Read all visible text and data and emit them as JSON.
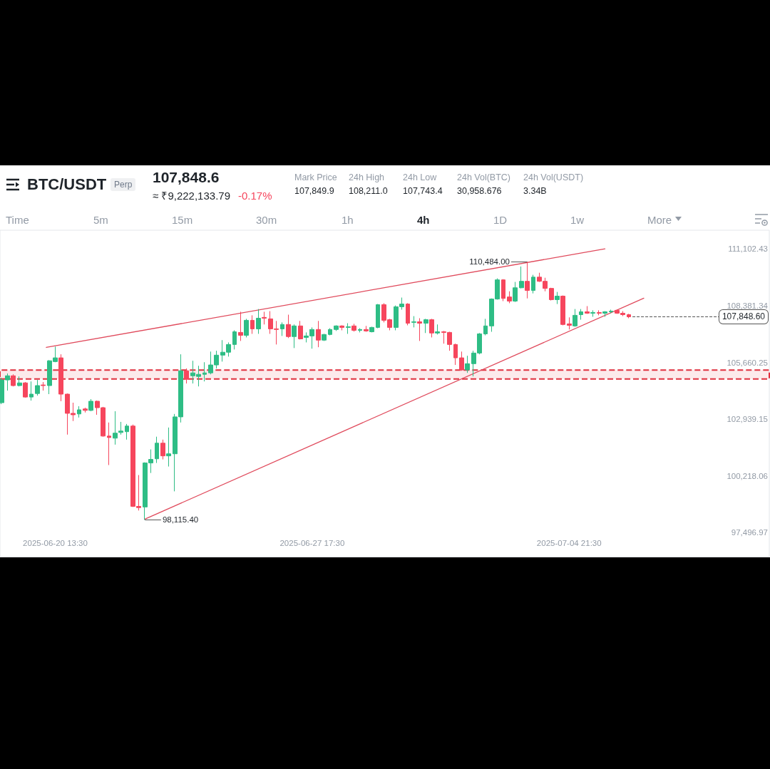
{
  "chart_data": {
    "type": "candlestick",
    "title": "BTC/USDT",
    "annotations": [
      "Perp",
      "107,848.6",
      "≈ ₹9,222,133.79",
      "-0.17%",
      "Mark Price",
      "107,849.9",
      "24h High",
      "108,211.0",
      "24h Low",
      "107,743.4",
      "24h Vol(BTC)",
      "30,958.676",
      "24h Vol(USDT)",
      "3.34B",
      "Time",
      "5m",
      "15m",
      "30m",
      "1h",
      "4h",
      "1D",
      "1w",
      "More",
      {
        "text": "110,484.00",
        "x": "2025-07-03T17:30",
        "y": 110484
      },
      {
        "text": "98,115.40",
        "x": "2025-06-23T01:30",
        "y": 98115.4
      }
    ],
    "x": [
      "2025-06-19T01:30",
      "2025-06-19T05:30",
      "2025-06-19T09:30",
      "2025-06-19T13:30",
      "2025-06-19T17:30",
      "2025-06-19T21:30",
      "2025-06-20T01:30",
      "2025-06-20T05:30",
      "2025-06-20T09:30",
      "2025-06-20T13:30",
      "2025-06-20T17:30",
      "2025-06-20T21:30",
      "2025-06-21T01:30",
      "2025-06-21T05:30",
      "2025-06-21T09:30",
      "2025-06-21T13:30",
      "2025-06-21T17:30",
      "2025-06-21T21:30",
      "2025-06-22T01:30",
      "2025-06-22T05:30",
      "2025-06-22T09:30",
      "2025-06-22T13:30",
      "2025-06-22T17:30",
      "2025-06-22T21:30",
      "2025-06-23T01:30",
      "2025-06-23T05:30",
      "2025-06-23T09:30",
      "2025-06-23T13:30",
      "2025-06-23T17:30",
      "2025-06-23T21:30",
      "2025-06-24T01:30",
      "2025-06-24T05:30",
      "2025-06-24T09:30",
      "2025-06-24T13:30",
      "2025-06-24T17:30",
      "2025-06-24T21:30",
      "2025-06-25T01:30",
      "2025-06-25T05:30",
      "2025-06-25T09:30",
      "2025-06-25T13:30",
      "2025-06-25T17:30",
      "2025-06-25T21:30",
      "2025-06-26T01:30",
      "2025-06-26T05:30",
      "2025-06-26T09:30",
      "2025-06-26T13:30",
      "2025-06-26T17:30",
      "2025-06-26T21:30",
      "2025-06-27T01:30",
      "2025-06-27T05:30",
      "2025-06-27T09:30",
      "2025-06-27T13:30",
      "2025-06-27T17:30",
      "2025-06-27T21:30",
      "2025-06-28T01:30",
      "2025-06-28T05:30",
      "2025-06-28T09:30",
      "2025-06-28T13:30",
      "2025-06-28T17:30",
      "2025-06-28T21:30",
      "2025-06-29T01:30",
      "2025-06-29T05:30",
      "2025-06-29T09:30",
      "2025-06-29T13:30",
      "2025-06-29T17:30",
      "2025-06-29T21:30",
      "2025-06-30T01:30",
      "2025-06-30T05:30",
      "2025-06-30T09:30",
      "2025-06-30T13:30",
      "2025-06-30T17:30",
      "2025-06-30T21:30",
      "2025-07-01T01:30",
      "2025-07-01T05:30",
      "2025-07-01T09:30",
      "2025-07-01T13:30",
      "2025-07-01T17:30",
      "2025-07-01T21:30",
      "2025-07-02T01:30",
      "2025-07-02T05:30",
      "2025-07-02T09:30",
      "2025-07-02T13:30",
      "2025-07-02T17:30",
      "2025-07-02T21:30",
      "2025-07-03T01:30",
      "2025-07-03T05:30",
      "2025-07-03T09:30",
      "2025-07-03T13:30",
      "2025-07-03T17:30",
      "2025-07-03T21:30",
      "2025-07-04T01:30",
      "2025-07-04T05:30",
      "2025-07-04T09:30",
      "2025-07-04T13:30",
      "2025-07-04T17:30",
      "2025-07-04T21:30",
      "2025-07-05T01:30",
      "2025-07-05T05:30",
      "2025-07-05T09:30",
      "2025-07-05T13:30",
      "2025-07-05T17:30",
      "2025-07-05T21:30",
      "2025-07-06T01:30",
      "2025-07-06T05:30",
      "2025-07-06T09:30",
      "2025-07-06T13:30"
    ],
    "ohlc": [
      [
        103730,
        104920,
        103660,
        104820
      ],
      [
        104820,
        105130,
        104310,
        105020
      ],
      [
        105020,
        105090,
        104510,
        104550
      ],
      [
        104550,
        104990,
        104510,
        104680
      ],
      [
        104680,
        104720,
        103970,
        104000
      ],
      [
        104000,
        104750,
        103830,
        104140
      ],
      [
        104170,
        104820,
        104070,
        104550
      ],
      [
        104580,
        104720,
        104310,
        104550
      ],
      [
        104550,
        105770,
        104140,
        105740
      ],
      [
        105700,
        106420,
        105670,
        105880
      ],
      [
        105880,
        106050,
        103800,
        104140
      ],
      [
        104140,
        104170,
        102200,
        103220
      ],
      [
        103220,
        103730,
        102850,
        103150
      ],
      [
        103190,
        103560,
        103020,
        103390
      ],
      [
        103430,
        103490,
        103260,
        103360
      ],
      [
        103360,
        103900,
        103320,
        103800
      ],
      [
        103800,
        103830,
        103150,
        103490
      ],
      [
        103490,
        103530,
        102100,
        102130
      ],
      [
        102130,
        102780,
        100740,
        102060
      ],
      [
        102030,
        103320,
        101720,
        102270
      ],
      [
        102300,
        102810,
        102200,
        102370
      ],
      [
        102340,
        102710,
        101960,
        102610
      ],
      [
        102610,
        102680,
        98730,
        98760
      ],
      [
        98760,
        100260,
        98560,
        98700
      ],
      [
        98730,
        100870,
        98115.4,
        100840
      ],
      [
        100840,
        101490,
        100360,
        101010
      ],
      [
        101040,
        102100,
        100840,
        101790
      ],
      [
        101790,
        101960,
        101010,
        101180
      ],
      [
        101180,
        102540,
        100670,
        101280
      ],
      [
        101280,
        103190,
        99480,
        103050
      ],
      [
        103050,
        106050,
        102780,
        105260
      ],
      [
        105260,
        105370,
        104650,
        104850
      ],
      [
        105020,
        105740,
        104650,
        105160
      ],
      [
        104990,
        105500,
        104510,
        105090
      ],
      [
        105090,
        105670,
        104750,
        105160
      ],
      [
        105160,
        106180,
        105090,
        105540
      ],
      [
        105540,
        106220,
        105370,
        106010
      ],
      [
        106010,
        106730,
        105700,
        106150
      ],
      [
        106150,
        106620,
        105940,
        106520
      ],
      [
        106520,
        107200,
        106280,
        107130
      ],
      [
        107100,
        108090,
        106690,
        106960
      ],
      [
        106960,
        107750,
        106860,
        107680
      ],
      [
        107680,
        107920,
        107030,
        107270
      ],
      [
        107270,
        108220,
        107030,
        107780
      ],
      [
        107820,
        108090,
        107480,
        107780
      ],
      [
        107750,
        108120,
        107030,
        107270
      ],
      [
        107270,
        107650,
        106520,
        107240
      ],
      [
        107270,
        107580,
        106930,
        107480
      ],
      [
        107480,
        107950,
        106830,
        106900
      ],
      [
        106900,
        107480,
        106350,
        107410
      ],
      [
        107410,
        107650,
        106760,
        106790
      ],
      [
        106860,
        107100,
        106620,
        106930
      ],
      [
        106930,
        107340,
        106320,
        107240
      ],
      [
        107240,
        107650,
        106390,
        106730
      ],
      [
        106730,
        107030,
        106690,
        107000
      ],
      [
        107000,
        107300,
        106960,
        107240
      ],
      [
        107240,
        107440,
        107170,
        107410
      ],
      [
        107410,
        107440,
        107200,
        107340
      ],
      [
        107340,
        107540,
        107030,
        107370
      ],
      [
        107410,
        107510,
        107140,
        107200
      ],
      [
        107200,
        107300,
        107100,
        107240
      ],
      [
        107240,
        107410,
        107130,
        107170
      ],
      [
        107130,
        107370,
        107100,
        107340
      ],
      [
        107340,
        108460,
        107300,
        108430
      ],
      [
        108430,
        108500,
        107580,
        107680
      ],
      [
        107710,
        107750,
        107200,
        107340
      ],
      [
        107340,
        108390,
        107200,
        108330
      ],
      [
        108330,
        108770,
        108190,
        108460
      ],
      [
        108460,
        108500,
        107440,
        107540
      ],
      [
        107580,
        107880,
        107340,
        107610
      ],
      [
        107610,
        107780,
        106690,
        107540
      ],
      [
        107540,
        107750,
        107070,
        107710
      ],
      [
        107710,
        107750,
        106860,
        107070
      ],
      [
        107070,
        107480,
        107000,
        107130
      ],
      [
        107130,
        107170,
        106560,
        107100
      ],
      [
        107100,
        107130,
        106220,
        106520
      ],
      [
        106520,
        106560,
        105540,
        105880
      ],
      [
        105880,
        106180,
        105260,
        105300
      ],
      [
        105300,
        105980,
        105160,
        105600
      ],
      [
        105600,
        106220,
        104990,
        106110
      ],
      [
        106110,
        107070,
        106050,
        107030
      ],
      [
        107030,
        107750,
        106960,
        107410
      ],
      [
        107410,
        108730,
        107130,
        108700
      ],
      [
        108700,
        109690,
        108670,
        109620
      ],
      [
        109620,
        109650,
        108600,
        108730
      ],
      [
        108800,
        109070,
        108500,
        108600
      ],
      [
        108600,
        109520,
        108560,
        109240
      ],
      [
        109240,
        110260,
        109210,
        109550
      ],
      [
        109550,
        110484,
        108730,
        109110
      ],
      [
        109110,
        109860,
        108970,
        109750
      ],
      [
        109750,
        109960,
        109520,
        109550
      ],
      [
        109550,
        109720,
        109070,
        109210
      ],
      [
        109210,
        109240,
        108630,
        108670
      ],
      [
        108670,
        109040,
        108460,
        108840
      ],
      [
        108840,
        108870,
        107440,
        107480
      ],
      [
        107510,
        107820,
        107240,
        107440
      ],
      [
        107410,
        108220,
        107370,
        107920
      ],
      [
        107950,
        108220,
        107710,
        108090
      ],
      [
        108090,
        108360,
        107990,
        108020
      ],
      [
        108020,
        108160,
        107850,
        108050
      ],
      [
        108050,
        108160,
        107920,
        108020
      ],
      [
        108020,
        108120,
        107850,
        108090
      ],
      [
        108090,
        108190,
        108020,
        108120
      ],
      [
        108160,
        108190,
        107990,
        108020
      ],
      [
        108020,
        108120,
        107880,
        107950
      ],
      [
        107950,
        107990,
        107780,
        107848.6
      ]
    ],
    "colors": [
      "#2ebd85",
      "#2ebd85",
      "#f6465d",
      "#2ebd85",
      "#f6465d",
      "#2ebd85",
      "#2ebd85",
      "#f6465d",
      "#2ebd85",
      "#2ebd85",
      "#f6465d",
      "#f6465d",
      "#f6465d",
      "#2ebd85",
      "#f6465d",
      "#2ebd85",
      "#f6465d",
      "#f6465d",
      "#f6465d",
      "#2ebd85",
      "#2ebd85",
      "#2ebd85",
      "#f6465d",
      "#f6465d",
      "#2ebd85",
      "#2ebd85",
      "#2ebd85",
      "#f6465d",
      "#2ebd85",
      "#2ebd85",
      "#2ebd85",
      "#f6465d",
      "#2ebd85",
      "#2ebd85",
      "#2ebd85",
      "#2ebd85",
      "#2ebd85",
      "#2ebd85",
      "#2ebd85",
      "#2ebd85",
      "#f6465d",
      "#2ebd85",
      "#f6465d",
      "#2ebd85",
      "#f6465d",
      "#f6465d",
      "#f6465d",
      "#2ebd85",
      "#f6465d",
      "#2ebd85",
      "#f6465d",
      "#2ebd85",
      "#2ebd85",
      "#f6465d",
      "#2ebd85",
      "#2ebd85",
      "#2ebd85",
      "#f6465d",
      "#2ebd85",
      "#f6465d",
      "#2ebd85",
      "#f6465d",
      "#2ebd85",
      "#2ebd85",
      "#f6465d",
      "#f6465d",
      "#2ebd85",
      "#2ebd85",
      "#f6465d",
      "#2ebd85",
      "#f6465d",
      "#2ebd85",
      "#f6465d",
      "#2ebd85",
      "#f6465d",
      "#f6465d",
      "#f6465d",
      "#f6465d",
      "#2ebd85",
      "#2ebd85",
      "#2ebd85",
      "#2ebd85",
      "#2ebd85",
      "#2ebd85",
      "#f6465d",
      "#f6465d",
      "#2ebd85",
      "#2ebd85",
      "#f6465d",
      "#2ebd85",
      "#f6465d",
      "#f6465d",
      "#f6465d",
      "#2ebd85",
      "#f6465d",
      "#f6465d",
      "#2ebd85",
      "#2ebd85",
      "#f6465d",
      "#2ebd85",
      "#f6465d",
      "#2ebd85",
      "#2ebd85",
      "#f6465d",
      "#f6465d",
      "#f6465d"
    ],
    "xlim": [
      "2025-06-19T00:30",
      "2025-07-10T11:30"
    ],
    "xticks": [
      {
        "value": "2025-06-20T13:30",
        "label": "2025-06-20 13:30"
      },
      {
        "value": "2025-06-27T17:30",
        "label": "2025-06-27 17:30"
      },
      {
        "value": "2025-07-04T21:30",
        "label": "2025-07-04 21:30"
      }
    ],
    "ylim": [
      96350,
      112000
    ],
    "yticks": [
      {
        "value": 97496.97,
        "label": "97,496.97"
      },
      {
        "value": 100218.06,
        "label": "100,218.06"
      },
      {
        "value": 102939.15,
        "label": "102,939.15"
      },
      {
        "value": 105660.25,
        "label": "105,660.25"
      },
      {
        "value": 108381.34,
        "label": "108,381.34"
      },
      {
        "value": 111102.43,
        "label": "111,102.43"
      }
    ],
    "ref_lines": [
      {
        "axis": "y",
        "value": 107848.6,
        "label": "107,848.60",
        "line_style": "dashed",
        "color": "#555555"
      }
    ],
    "bands": [
      {
        "axis": "y",
        "from": 104870,
        "to": 105290,
        "color": "#e0303e"
      }
    ],
    "series": [
      {
        "type": "line",
        "x": [
          "2025-06-20T07:30",
          "2025-07-05T21:30"
        ],
        "values": [
          106380,
          111110
        ],
        "color": "#e04a5c"
      },
      {
        "type": "line",
        "x": [
          "2025-06-23T01:30",
          "2025-07-06T23:30"
        ],
        "values": [
          98150,
          108740
        ],
        "color": "#e04a5c"
      }
    ]
  }
}
